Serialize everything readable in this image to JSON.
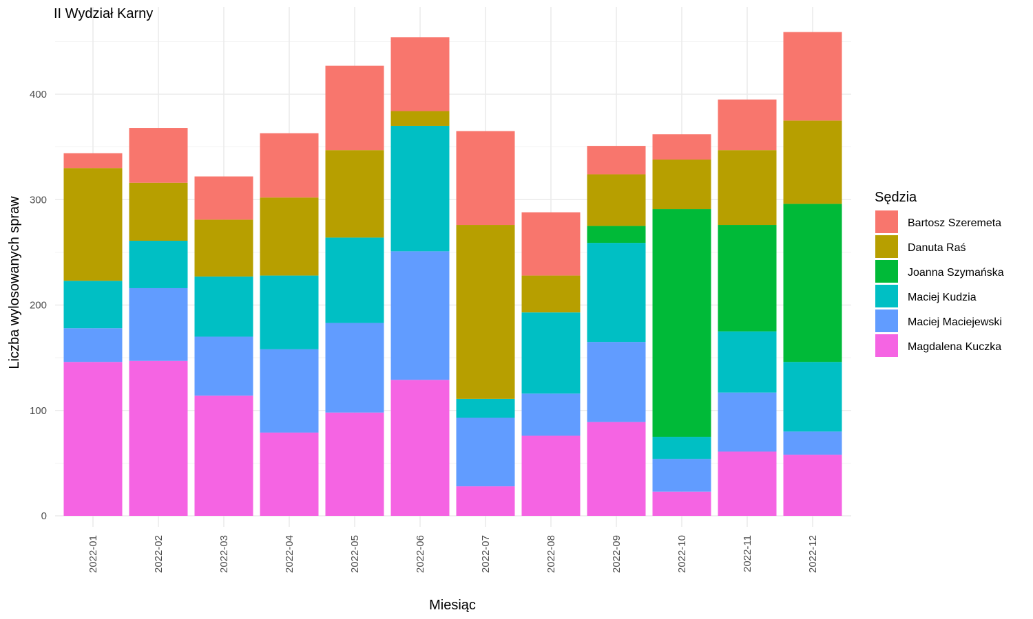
{
  "chart_data": {
    "type": "bar",
    "stacked": true,
    "title": "II Wydział Karny",
    "xlabel": "Miesiąc",
    "ylabel": "Liczba wylosowanych spraw",
    "ylim": [
      0,
      470
    ],
    "yticks": [
      0,
      100,
      200,
      300,
      400
    ],
    "grid": true,
    "legend_position": "right",
    "legend_title": "Sędzia",
    "categories": [
      "2022-01",
      "2022-02",
      "2022-03",
      "2022-04",
      "2022-05",
      "2022-06",
      "2022-07",
      "2022-08",
      "2022-09",
      "2022-10",
      "2022-11",
      "2022-12"
    ],
    "series": [
      {
        "name": "Magdalena Kuczka",
        "color": "#F564E3",
        "values": [
          146,
          147,
          114,
          79,
          98,
          129,
          28,
          76,
          89,
          23,
          61,
          58
        ]
      },
      {
        "name": "Maciej Maciejewski",
        "color": "#619CFF",
        "values": [
          32,
          69,
          56,
          79,
          85,
          122,
          65,
          40,
          76,
          31,
          56,
          22
        ]
      },
      {
        "name": "Maciej Kudzia",
        "color": "#00BFC4",
        "values": [
          45,
          45,
          57,
          70,
          81,
          119,
          18,
          77,
          94,
          21,
          58,
          66
        ]
      },
      {
        "name": "Joanna Szymańska",
        "color": "#00BA38",
        "values": [
          0,
          0,
          0,
          0,
          0,
          0,
          0,
          0,
          16,
          216,
          101,
          150
        ]
      },
      {
        "name": "Danuta Raś",
        "color": "#B79F00",
        "values": [
          107,
          55,
          54,
          74,
          83,
          14,
          165,
          35,
          49,
          47,
          71,
          79
        ]
      },
      {
        "name": "Bartosz Szeremeta",
        "color": "#F8766D",
        "values": [
          14,
          52,
          41,
          61,
          80,
          70,
          89,
          60,
          27,
          24,
          48,
          84
        ]
      }
    ]
  }
}
